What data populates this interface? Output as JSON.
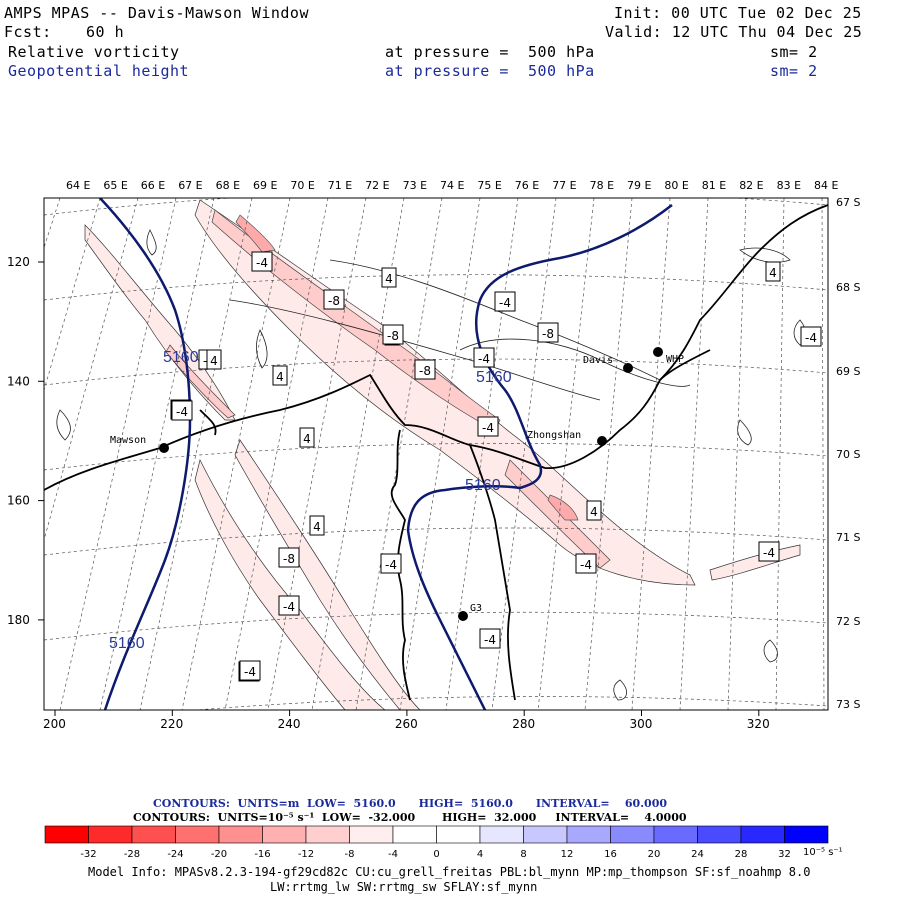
{
  "header": {
    "title": "AMPS MPAS -- Davis-Mawson Window",
    "init": "Init: 00 UTC Tue 02 Dec 25",
    "fcst_label": "Fcst:",
    "fcst_value": "60 h",
    "valid": "Valid: 12 UTC Thu 04 Dec 25",
    "field1": {
      "name": "Relative vorticity",
      "level": "at pressure =  500 hPa",
      "smooth": "sm= 2"
    },
    "field2": {
      "name": "Geopotential height",
      "level": "at pressure =  500 hPa",
      "smooth": "sm= 2"
    }
  },
  "map": {
    "top_lon_labels": [
      "64 E",
      "65 E",
      "66 E",
      "67 E",
      "68 E",
      "69 E",
      "70 E",
      "71 E",
      "72 E",
      "73 E",
      "74 E",
      "75 E",
      "76 E",
      "77 E",
      "78 E",
      "79 E",
      "80 E",
      "81 E",
      "82 E",
      "83 E",
      "84 E"
    ],
    "right_lat_labels": [
      "67 S",
      "68 S",
      "69 S",
      "70 S",
      "71 S",
      "72 S",
      "73 S"
    ],
    "x_ticks": [
      "200",
      "220",
      "240",
      "260",
      "280",
      "300",
      "320"
    ],
    "y_ticks": [
      "120",
      "140",
      "160",
      "180"
    ],
    "stations": [
      "Mawson",
      "Davis",
      "WHP",
      "Zhongshan",
      "G3"
    ],
    "height_labels": [
      "5160",
      "5160",
      "5160",
      "5160"
    ],
    "vort_labels": [
      "-4",
      "4",
      "-8",
      "-4",
      "4",
      "-8",
      "-4",
      "4",
      "-4",
      "4",
      "-8",
      "-4",
      "-4",
      "4",
      "-8",
      "-4",
      "4",
      "-4",
      "-4",
      "-4",
      "-4",
      "4",
      "-4",
      "-4",
      "4",
      "-8",
      "-4",
      "-4"
    ]
  },
  "legend": {
    "contours1": "CONTOURS:  UNITS=m  LOW=  5160.0      HIGH=  5160.0      INTERVAL=    60.000",
    "contours2": "CONTOURS:  UNITS=10⁻⁵ s⁻¹  LOW=  -32.000       HIGH=  32.000     INTERVAL=    4.0000",
    "colorbar_labels": [
      "-32",
      "-28",
      "-24",
      "-20",
      "-16",
      "-12",
      "-8",
      "-4",
      "0",
      "4",
      "8",
      "12",
      "16",
      "20",
      "24",
      "28",
      "32"
    ],
    "colorbar_units": "10⁻⁵ s⁻¹",
    "colors": [
      "#ff0000",
      "#ff2b2b",
      "#ff5050",
      "#ff7070",
      "#ff9090",
      "#ffb0b0",
      "#ffcfcf",
      "#ffeeee",
      "#ffffff",
      "#ffffff",
      "#dcdcff",
      "#bbbbff",
      "#9696ff",
      "#7070ff",
      "#4b4bff",
      "#2a2aff",
      "#0000ff"
    ]
  },
  "footer": {
    "line1": "Model Info: MPASv8.2.3-194-gf29cd82c CU:cu_grell_freitas PBL:bl_mynn MP:mp_thompson SF:sf_noahmp 8.0",
    "line2": "LW:rrtmg_lw SW:rrtmg_sw SFLAY:sf_mynn"
  }
}
